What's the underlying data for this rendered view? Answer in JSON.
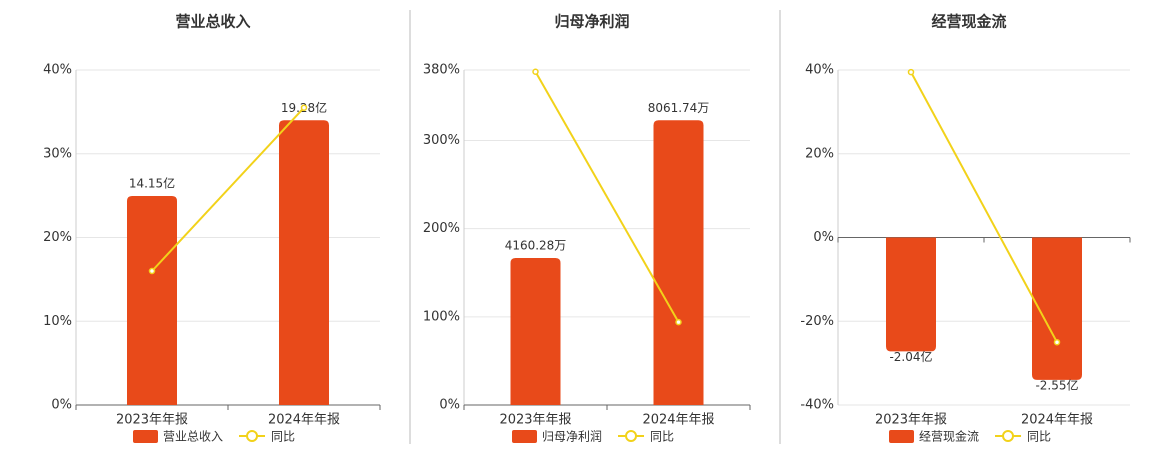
{
  "chart_data": [
    {
      "type": "bar",
      "title": "营业总收入",
      "categories": [
        "2023年年报",
        "2024年年报"
      ],
      "series": [
        {
          "name": "营业总收入",
          "type": "bar",
          "color": "#e84a1a",
          "values": [
            14.15,
            19.28
          ],
          "value_labels": [
            "14.15亿",
            "19.28亿"
          ]
        },
        {
          "name": "同比",
          "type": "line",
          "color": "#f2d21a",
          "values": [
            16,
            35.5
          ]
        }
      ],
      "ylim": [
        0,
        40
      ],
      "yticks": [
        {
          "value": 0,
          "label": "0%"
        },
        {
          "value": 10,
          "label": "10%"
        },
        {
          "value": 20,
          "label": "20%"
        },
        {
          "value": 30,
          "label": "30%"
        },
        {
          "value": 40,
          "label": "40%"
        }
      ],
      "grid": true
    },
    {
      "type": "bar",
      "title": "归母净利润",
      "categories": [
        "2023年年报",
        "2024年年报"
      ],
      "series": [
        {
          "name": "归母净利润",
          "type": "bar",
          "color": "#e84a1a",
          "values": [
            4160.28,
            8061.74
          ],
          "value_labels": [
            "4160.28万",
            "8061.74万"
          ]
        },
        {
          "name": "同比",
          "type": "line",
          "color": "#f2d21a",
          "values": [
            378,
            94
          ]
        }
      ],
      "ylim": [
        0,
        380
      ],
      "yticks": [
        {
          "value": 0,
          "label": "0%"
        },
        {
          "value": 100,
          "label": "100%"
        },
        {
          "value": 200,
          "label": "200%"
        },
        {
          "value": 300,
          "label": "300%"
        },
        {
          "value": 380,
          "label": "380%"
        }
      ],
      "grid": true
    },
    {
      "type": "bar",
      "title": "经营现金流",
      "categories": [
        "2023年年报",
        "2024年年报"
      ],
      "series": [
        {
          "name": "经营现金流",
          "type": "bar",
          "color": "#e84a1a",
          "values": [
            -2.04,
            -2.55
          ],
          "value_labels": [
            "-2.04亿",
            "-2.55亿"
          ]
        },
        {
          "name": "同比",
          "type": "line",
          "color": "#f2d21a",
          "values": [
            39.5,
            -25
          ]
        }
      ],
      "ylim": [
        -40,
        40
      ],
      "yticks": [
        {
          "value": -40,
          "label": "-40%"
        },
        {
          "value": -20,
          "label": "-20%"
        },
        {
          "value": 0,
          "label": "0%"
        },
        {
          "value": 20,
          "label": "20%"
        },
        {
          "value": 40,
          "label": "40%"
        }
      ],
      "grid": true
    }
  ]
}
